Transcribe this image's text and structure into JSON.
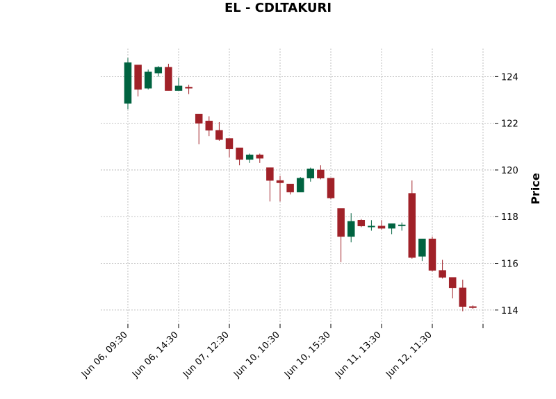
{
  "chart_data": {
    "type": "candlestick",
    "title": "EL - CDLTAKURI",
    "xlabel": "",
    "ylabel": "Price",
    "ylim": [
      113.4,
      125.2
    ],
    "y_ticks": [
      114,
      116,
      118,
      120,
      122,
      124
    ],
    "x_tick_labels": [
      {
        "index": 0,
        "label": "Jun 06, 09:30"
      },
      {
        "index": 5,
        "label": "Jun 06, 14:30"
      },
      {
        "index": 10,
        "label": "Jun 07, 12:30"
      },
      {
        "index": 15,
        "label": "Jun 10, 10:30"
      },
      {
        "index": 20,
        "label": "Jun 10, 15:30"
      },
      {
        "index": 25,
        "label": "Jun 11, 13:30"
      },
      {
        "index": 30,
        "label": "Jun 12, 11:30"
      },
      {
        "index": 35,
        "label": ""
      }
    ],
    "grid": true,
    "colors": {
      "up": "#006340",
      "down": "#a02128",
      "grid": "#b0b0b0"
    },
    "candles": [
      {
        "o": 122.85,
        "h": 124.8,
        "l": 122.6,
        "c": 124.6
      },
      {
        "o": 124.5,
        "h": 124.5,
        "l": 123.15,
        "c": 123.45
      },
      {
        "o": 123.5,
        "h": 124.3,
        "l": 123.45,
        "c": 124.2
      },
      {
        "o": 124.15,
        "h": 124.45,
        "l": 124.0,
        "c": 124.4
      },
      {
        "o": 124.4,
        "h": 124.55,
        "l": 123.4,
        "c": 123.4
      },
      {
        "o": 123.4,
        "h": 123.95,
        "l": 123.4,
        "c": 123.6
      },
      {
        "o": 123.55,
        "h": 123.65,
        "l": 123.25,
        "c": 123.5
      },
      {
        "o": 122.4,
        "h": 122.4,
        "l": 121.1,
        "c": 122.0
      },
      {
        "o": 122.1,
        "h": 122.3,
        "l": 121.45,
        "c": 121.7
      },
      {
        "o": 121.7,
        "h": 122.05,
        "l": 121.25,
        "c": 121.3
      },
      {
        "o": 121.35,
        "h": 121.35,
        "l": 120.55,
        "c": 120.9
      },
      {
        "o": 120.95,
        "h": 120.95,
        "l": 120.2,
        "c": 120.45
      },
      {
        "o": 120.45,
        "h": 120.7,
        "l": 120.3,
        "c": 120.65
      },
      {
        "o": 120.65,
        "h": 120.7,
        "l": 120.3,
        "c": 120.5
      },
      {
        "o": 120.1,
        "h": 120.1,
        "l": 118.65,
        "c": 119.55
      },
      {
        "o": 119.55,
        "h": 119.75,
        "l": 118.65,
        "c": 119.45
      },
      {
        "o": 119.4,
        "h": 119.4,
        "l": 118.95,
        "c": 119.05
      },
      {
        "o": 119.05,
        "h": 119.7,
        "l": 119.05,
        "c": 119.65
      },
      {
        "o": 119.65,
        "h": 120.1,
        "l": 119.5,
        "c": 120.05
      },
      {
        "o": 120.0,
        "h": 120.2,
        "l": 119.6,
        "c": 119.65
      },
      {
        "o": 119.65,
        "h": 119.65,
        "l": 118.75,
        "c": 118.8
      },
      {
        "o": 118.35,
        "h": 118.35,
        "l": 116.05,
        "c": 117.15
      },
      {
        "o": 117.15,
        "h": 118.15,
        "l": 116.9,
        "c": 117.8
      },
      {
        "o": 117.85,
        "h": 117.9,
        "l": 117.55,
        "c": 117.6
      },
      {
        "o": 117.6,
        "h": 117.85,
        "l": 117.4,
        "c": 117.6
      },
      {
        "o": 117.6,
        "h": 117.85,
        "l": 117.45,
        "c": 117.5
      },
      {
        "o": 117.5,
        "h": 117.7,
        "l": 117.25,
        "c": 117.7
      },
      {
        "o": 117.65,
        "h": 117.75,
        "l": 117.4,
        "c": 117.65
      },
      {
        "o": 119.0,
        "h": 119.55,
        "l": 116.2,
        "c": 116.25
      },
      {
        "o": 116.3,
        "h": 117.05,
        "l": 116.1,
        "c": 117.05
      },
      {
        "o": 117.05,
        "h": 117.15,
        "l": 115.65,
        "c": 115.7
      },
      {
        "o": 115.7,
        "h": 116.15,
        "l": 115.35,
        "c": 115.4
      },
      {
        "o": 115.4,
        "h": 115.4,
        "l": 114.5,
        "c": 114.95
      },
      {
        "o": 114.95,
        "h": 115.3,
        "l": 113.95,
        "c": 114.15
      },
      {
        "o": 114.15,
        "h": 114.2,
        "l": 114.05,
        "c": 114.1
      }
    ]
  }
}
